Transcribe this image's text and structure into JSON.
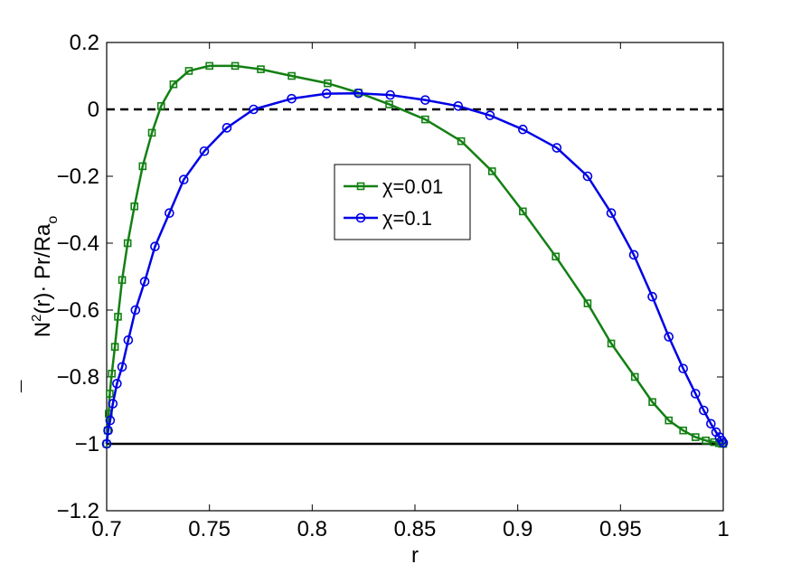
{
  "chart_data": {
    "type": "line",
    "title": "",
    "xlabel": "r",
    "ylabel": {
      "base": "N",
      "bar": "¯",
      "sup": "2",
      "rest": "(r)· Pr/Ra",
      "sub": "o"
    },
    "xlim": [
      0.7,
      1.0
    ],
    "ylim": [
      -1.2,
      0.2
    ],
    "xticks": [
      0.7,
      0.75,
      0.8,
      0.85,
      0.9,
      0.95,
      1.0
    ],
    "xtick_labels": [
      "0.7",
      "0.75",
      "0.8",
      "0.85",
      "0.9",
      "0.95",
      "1"
    ],
    "yticks": [
      -1.2,
      -1.0,
      -0.8,
      -0.6,
      -0.4,
      -0.2,
      0.0,
      0.2
    ],
    "ytick_labels": [
      "−1.2",
      "−1",
      "−0.8",
      "−0.6",
      "−0.4",
      "−0.2",
      "0",
      "0.2"
    ],
    "grid": false,
    "legend_position": "center",
    "reference_lines": [
      {
        "y": 0,
        "style": "dashed",
        "color": "#000000"
      },
      {
        "y": -1,
        "style": "solid",
        "color": "#000000"
      }
    ],
    "series": [
      {
        "name": "χ=0.01",
        "color": "#138013",
        "marker": "square",
        "x": [
          0.7,
          0.7005,
          0.701,
          0.7015,
          0.7025,
          0.704,
          0.7055,
          0.7075,
          0.7102,
          0.7135,
          0.7175,
          0.722,
          0.7265,
          0.7325,
          0.74,
          0.75,
          0.7625,
          0.775,
          0.79,
          0.8075,
          0.8225,
          0.8375,
          0.855,
          0.8725,
          0.8875,
          0.9025,
          0.9185,
          0.934,
          0.9455,
          0.957,
          0.9655,
          0.9735,
          0.9805,
          0.9865,
          0.9915,
          0.9955,
          0.998,
          0.9995,
          1.0
        ],
        "y": [
          -1.0,
          -0.96,
          -0.91,
          -0.85,
          -0.79,
          -0.71,
          -0.62,
          -0.51,
          -0.4,
          -0.29,
          -0.17,
          -0.07,
          0.01,
          0.075,
          0.115,
          0.13,
          0.13,
          0.12,
          0.1,
          0.078,
          0.05,
          0.015,
          -0.03,
          -0.095,
          -0.185,
          -0.305,
          -0.44,
          -0.58,
          -0.7,
          -0.8,
          -0.875,
          -0.93,
          -0.96,
          -0.98,
          -0.99,
          -0.995,
          -0.998,
          -1.0,
          -1.0
        ]
      },
      {
        "name": "χ=0.1",
        "color": "#0000e6",
        "marker": "circle",
        "x": [
          0.7,
          0.7007,
          0.7017,
          0.703,
          0.705,
          0.7075,
          0.7105,
          0.714,
          0.7185,
          0.7235,
          0.7305,
          0.7375,
          0.7475,
          0.7585,
          0.7715,
          0.79,
          0.807,
          0.8225,
          0.838,
          0.855,
          0.871,
          0.8865,
          0.9025,
          0.919,
          0.934,
          0.9455,
          0.9565,
          0.9655,
          0.9735,
          0.9805,
          0.9865,
          0.9905,
          0.994,
          0.9965,
          0.9982,
          0.9993,
          1.0
        ],
        "y": [
          -1.0,
          -0.96,
          -0.93,
          -0.88,
          -0.82,
          -0.77,
          -0.69,
          -0.6,
          -0.515,
          -0.41,
          -0.31,
          -0.21,
          -0.125,
          -0.055,
          0.0,
          0.032,
          0.047,
          0.048,
          0.043,
          0.028,
          0.01,
          -0.018,
          -0.06,
          -0.115,
          -0.2,
          -0.31,
          -0.435,
          -0.56,
          -0.68,
          -0.775,
          -0.85,
          -0.9,
          -0.94,
          -0.965,
          -0.98,
          -0.99,
          -0.997
        ]
      }
    ]
  }
}
